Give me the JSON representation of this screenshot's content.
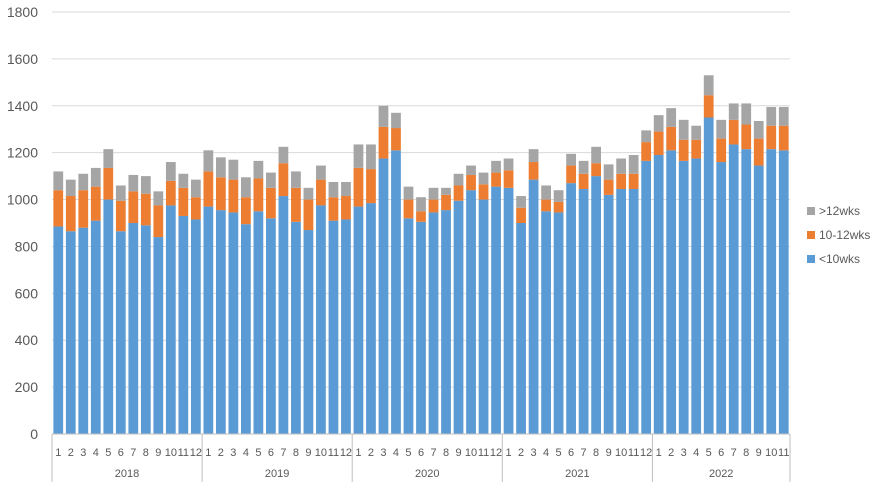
{
  "chart_data": {
    "type": "bar",
    "stacked": true,
    "title": "",
    "xlabel": "",
    "ylabel": "",
    "ylim": [
      0,
      1800
    ],
    "yticks": [
      0,
      200,
      400,
      600,
      800,
      1000,
      1200,
      1400,
      1600,
      1800
    ],
    "grid": true,
    "legend_position": "right",
    "colors": {
      "lt10": "#5B9BD5",
      "mid": "#ED7D31",
      "gt12": "#A5A5A5",
      "grid": "#D9D9D9",
      "axis": "#BFBFBF",
      "text": "#595959"
    },
    "years": [
      {
        "label": "2018",
        "months": 12
      },
      {
        "label": "2019",
        "months": 12
      },
      {
        "label": "2020",
        "months": 12
      },
      {
        "label": "2021",
        "months": 12
      },
      {
        "label": "2022",
        "months": 11
      }
    ],
    "categories": [
      "1",
      "2",
      "3",
      "4",
      "5",
      "6",
      "7",
      "8",
      "9",
      "10",
      "11",
      "12",
      "1",
      "2",
      "3",
      "4",
      "5",
      "6",
      "7",
      "8",
      "9",
      "10",
      "11",
      "12",
      "1",
      "2",
      "3",
      "4",
      "5",
      "6",
      "7",
      "8",
      "9",
      "10",
      "11",
      "12",
      "1",
      "2",
      "3",
      "4",
      "5",
      "6",
      "7",
      "8",
      "9",
      "10",
      "11",
      "12",
      "1",
      "2",
      "3",
      "4",
      "5",
      "6",
      "7",
      "8",
      "9",
      "10",
      "11"
    ],
    "series": [
      {
        "name": "<10wks",
        "color": "#5B9BD5",
        "values": [
          885,
          865,
          880,
          910,
          1000,
          865,
          900,
          890,
          840,
          975,
          930,
          915,
          970,
          955,
          945,
          895,
          950,
          920,
          1015,
          905,
          870,
          975,
          910,
          915,
          970,
          985,
          1175,
          1210,
          920,
          905,
          945,
          955,
          995,
          1040,
          1000,
          1055,
          1050,
          900,
          1085,
          950,
          945,
          1070,
          1045,
          1100,
          1020,
          1045,
          1045,
          1165,
          1190,
          1210,
          1165,
          1175,
          1350,
          1160,
          1235,
          1215,
          1145,
          1215,
          1210
        ]
      },
      {
        "name": "10-12wks",
        "color": "#ED7D31",
        "values": [
          155,
          150,
          160,
          145,
          135,
          130,
          135,
          135,
          135,
          105,
          120,
          95,
          150,
          140,
          140,
          115,
          140,
          130,
          140,
          145,
          130,
          110,
          100,
          100,
          165,
          145,
          135,
          95,
          80,
          45,
          55,
          65,
          65,
          65,
          65,
          60,
          75,
          65,
          75,
          50,
          45,
          75,
          65,
          55,
          65,
          65,
          65,
          80,
          100,
          100,
          90,
          80,
          95,
          100,
          105,
          105,
          115,
          100,
          105
        ]
      },
      {
        "name": ">12wks",
        "color": "#A5A5A5",
        "values": [
          80,
          70,
          70,
          80,
          80,
          65,
          70,
          75,
          60,
          80,
          60,
          75,
          90,
          85,
          85,
          85,
          75,
          65,
          70,
          70,
          50,
          60,
          65,
          60,
          100,
          105,
          90,
          65,
          55,
          60,
          50,
          30,
          50,
          40,
          50,
          50,
          50,
          50,
          55,
          60,
          50,
          50,
          55,
          70,
          65,
          65,
          80,
          50,
          70,
          80,
          85,
          60,
          85,
          80,
          70,
          90,
          75,
          80,
          80
        ]
      }
    ]
  }
}
